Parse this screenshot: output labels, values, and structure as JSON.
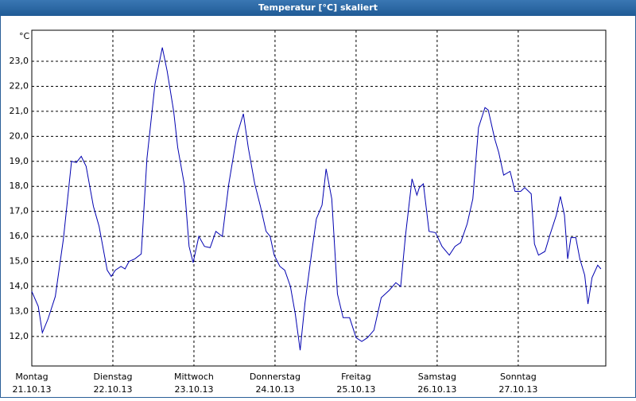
{
  "chart_data": {
    "type": "line",
    "title": "Temperatur [°C] skaliert",
    "y_label": "°C",
    "x": [
      0,
      0.08,
      0.13,
      0.2,
      0.29,
      0.39,
      0.49,
      0.55,
      0.61,
      0.67,
      0.76,
      0.83,
      0.93,
      0.98,
      1.03,
      1.1,
      1.15,
      1.2,
      1.27,
      1.35,
      1.42,
      1.52,
      1.61,
      1.67,
      1.75,
      1.8,
      1.88,
      1.94,
      1.99,
      2.06,
      2.13,
      2.2,
      2.27,
      2.35,
      2.43,
      2.53,
      2.61,
      2.67,
      2.75,
      2.82,
      2.89,
      2.94,
      2.99,
      3.06,
      3.12,
      3.19,
      3.25,
      3.31,
      3.37,
      3.45,
      3.51,
      3.58,
      3.63,
      3.7,
      3.77,
      3.84,
      3.92,
      4.0,
      4.07,
      4.14,
      4.22,
      4.31,
      4.41,
      4.49,
      4.55,
      4.61,
      4.69,
      4.75,
      4.78,
      4.83,
      4.9,
      4.98,
      5.06,
      5.15,
      5.22,
      5.29,
      5.37,
      5.44,
      5.51,
      5.59,
      5.63,
      5.71,
      5.76,
      5.82,
      5.9,
      5.96,
      6.03,
      6.08,
      6.16,
      6.2,
      6.25,
      6.33,
      6.39,
      6.47,
      6.52,
      6.57,
      6.61,
      6.65,
      6.71,
      6.76,
      6.82,
      6.86,
      6.91,
      6.98,
      7.02
    ],
    "series": [
      {
        "name": "Temperatur",
        "color": "#0000b0",
        "values": [
          13.8,
          13.2,
          12.15,
          12.7,
          13.6,
          15.9,
          19.0,
          18.95,
          19.2,
          18.8,
          17.2,
          16.4,
          14.65,
          14.4,
          14.65,
          14.8,
          14.7,
          15.0,
          15.1,
          15.3,
          19.1,
          22.1,
          23.55,
          22.6,
          21.0,
          19.55,
          18.1,
          15.6,
          14.95,
          16.0,
          15.6,
          15.55,
          16.2,
          16.0,
          18.1,
          20.05,
          20.9,
          19.55,
          18.1,
          17.2,
          16.2,
          16.0,
          15.25,
          14.8,
          14.65,
          14.0,
          12.9,
          11.45,
          13.35,
          15.3,
          16.7,
          17.25,
          18.7,
          17.5,
          13.7,
          12.75,
          12.75,
          11.95,
          11.8,
          11.95,
          12.25,
          13.55,
          13.85,
          14.15,
          14.0,
          16.05,
          18.3,
          17.65,
          17.95,
          18.1,
          16.2,
          16.15,
          15.6,
          15.25,
          15.6,
          15.75,
          16.5,
          17.5,
          20.35,
          21.15,
          21.05,
          19.9,
          19.35,
          18.45,
          18.6,
          17.8,
          17.8,
          17.95,
          17.7,
          15.7,
          15.25,
          15.4,
          16.05,
          16.85,
          17.6,
          16.85,
          15.1,
          15.95,
          15.95,
          15.1,
          14.45,
          13.3,
          14.35,
          14.85,
          14.7
        ]
      }
    ],
    "xlim": [
      0,
      7.08
    ],
    "xticks": [
      {
        "value": 0,
        "label": "Montag"
      },
      {
        "value": 1,
        "label": "Dienstag"
      },
      {
        "value": 2,
        "label": "Mittwoch"
      },
      {
        "value": 3,
        "label": "Donnerstag"
      },
      {
        "value": 4,
        "label": "Freitag"
      },
      {
        "value": 5,
        "label": "Samstag"
      },
      {
        "value": 6,
        "label": "Sonntag"
      }
    ],
    "xtick_dates": [
      "21.10.13",
      "22.10.13",
      "23.10.13",
      "24.10.13",
      "25.10.13",
      "26.10.13",
      "27.10.13"
    ],
    "ylim": [
      10.82,
      24.24
    ],
    "yticks": [
      {
        "value": 12,
        "label": "12,0"
      },
      {
        "value": 13,
        "label": "13,0"
      },
      {
        "value": 14,
        "label": "14,0"
      },
      {
        "value": 15,
        "label": "15,0"
      },
      {
        "value": 16,
        "label": "16,0"
      },
      {
        "value": 17,
        "label": "17,0"
      },
      {
        "value": 18,
        "label": "18,0"
      },
      {
        "value": 19,
        "label": "19,0"
      },
      {
        "value": 20,
        "label": "20,0"
      },
      {
        "value": 21,
        "label": "21,0"
      },
      {
        "value": 22,
        "label": "22,0"
      },
      {
        "value": 23,
        "label": "23,0"
      }
    ],
    "grid": true
  }
}
